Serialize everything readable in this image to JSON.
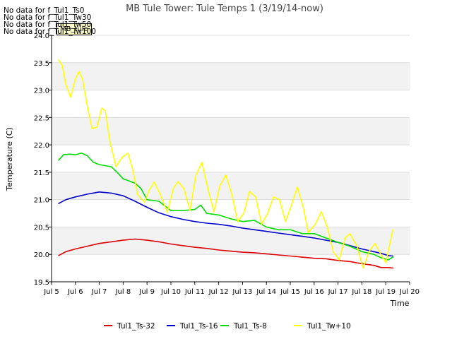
{
  "chart_data": {
    "type": "line",
    "title": "MB Tule Tower: Tule Temps 1 (3/19/14-now)",
    "xlabel": "Time",
    "ylabel": "Temperature (C)",
    "xlim": [
      5,
      20
    ],
    "ylim": [
      19.5,
      24.0
    ],
    "x_ticks": [
      5,
      6,
      7,
      8,
      9,
      10,
      11,
      12,
      13,
      14,
      15,
      16,
      17,
      18,
      19,
      20
    ],
    "x_tick_labels": [
      "Jul 5",
      "Jul 6",
      "Jul 7",
      "Jul 8",
      "Jul 9",
      "Jul 10",
      "Jul 11",
      "Jul 12",
      "Jul 13",
      "Jul 14",
      "Jul 15",
      "Jul 16",
      "Jul 17",
      "Jul 18",
      "Jul 19",
      "Jul 20"
    ],
    "y_ticks": [
      19.5,
      20.0,
      20.5,
      21.0,
      21.5,
      22.0,
      22.5,
      23.0,
      23.5,
      24.0
    ],
    "y_tick_labels": [
      "19.5",
      "20.0",
      "20.5",
      "21.0",
      "21.5",
      "22.0",
      "22.5",
      "23.0",
      "23.5",
      "24.0"
    ],
    "grid": true,
    "legend_position": "bottom",
    "series": [
      {
        "name": "Tul1_Ts-32",
        "color": "#dd0000",
        "x": [
          5.3,
          5.6,
          6.0,
          6.5,
          7.0,
          7.5,
          8.0,
          8.5,
          9.0,
          9.5,
          10.0,
          10.5,
          11.0,
          11.5,
          12.0,
          12.5,
          13.0,
          13.5,
          14.0,
          14.5,
          15.0,
          15.5,
          16.0,
          16.5,
          17.0,
          17.5,
          18.0,
          18.5,
          18.8,
          19.1,
          19.3
        ],
        "y": [
          19.98,
          20.05,
          20.1,
          20.15,
          20.2,
          20.23,
          20.26,
          20.28,
          20.26,
          20.23,
          20.19,
          20.16,
          20.13,
          20.11,
          20.08,
          20.06,
          20.04,
          20.03,
          20.01,
          19.99,
          19.97,
          19.95,
          19.93,
          19.92,
          19.89,
          19.87,
          19.83,
          19.8,
          19.76,
          19.76,
          19.75
        ]
      },
      {
        "name": "Tul1_Ts-16",
        "color": "#0000cc",
        "x": [
          5.3,
          5.6,
          6.0,
          6.5,
          7.0,
          7.5,
          8.0,
          8.5,
          9.0,
          9.5,
          10.0,
          10.5,
          11.0,
          11.5,
          12.0,
          12.5,
          13.0,
          13.5,
          14.0,
          14.5,
          15.0,
          15.5,
          16.0,
          16.5,
          17.0,
          17.5,
          18.0,
          18.5,
          18.8,
          19.1,
          19.3
        ],
        "y": [
          20.93,
          21.0,
          21.05,
          21.1,
          21.14,
          21.12,
          21.07,
          20.97,
          20.86,
          20.76,
          20.69,
          20.64,
          20.6,
          20.57,
          20.55,
          20.52,
          20.48,
          20.45,
          20.42,
          20.39,
          20.36,
          20.33,
          20.3,
          20.26,
          20.22,
          20.16,
          20.1,
          20.05,
          20.02,
          19.98,
          19.97
        ]
      },
      {
        "name": "Tul1_Ts-8",
        "color": "#00dd00",
        "x": [
          5.3,
          5.5,
          5.75,
          6.0,
          6.25,
          6.5,
          6.75,
          7.0,
          7.25,
          7.5,
          7.75,
          8.0,
          8.25,
          8.5,
          8.75,
          9.0,
          9.5,
          10.0,
          10.5,
          11.0,
          11.25,
          11.5,
          12.0,
          12.5,
          13.0,
          13.5,
          14.0,
          14.5,
          15.0,
          15.5,
          16.0,
          16.5,
          17.0,
          17.5,
          18.0,
          18.5,
          18.8,
          19.1,
          19.3
        ],
        "y": [
          21.72,
          21.82,
          21.83,
          21.82,
          21.85,
          21.8,
          21.68,
          21.64,
          21.62,
          21.6,
          21.5,
          21.38,
          21.34,
          21.3,
          21.2,
          21.0,
          20.97,
          20.8,
          20.8,
          20.82,
          20.9,
          20.75,
          20.72,
          20.65,
          20.6,
          20.62,
          20.5,
          20.45,
          20.45,
          20.38,
          20.38,
          20.3,
          20.22,
          20.15,
          20.05,
          20.0,
          19.94,
          19.9,
          19.95
        ]
      },
      {
        "name": "Tul1_Tw+10",
        "color": "#ffff00",
        "x": [
          5.3,
          5.45,
          5.6,
          5.8,
          6.0,
          6.15,
          6.3,
          6.5,
          6.7,
          6.9,
          7.1,
          7.25,
          7.45,
          7.7,
          7.95,
          8.2,
          8.4,
          8.6,
          8.9,
          9.1,
          9.3,
          9.55,
          9.85,
          10.1,
          10.3,
          10.55,
          10.8,
          11.05,
          11.3,
          11.55,
          11.8,
          12.05,
          12.3,
          12.55,
          12.8,
          13.05,
          13.3,
          13.55,
          13.8,
          14.05,
          14.3,
          14.55,
          14.8,
          15.05,
          15.3,
          15.55,
          15.75,
          16.05,
          16.3,
          16.55,
          16.8,
          17.05,
          17.3,
          17.5,
          17.8,
          18.05,
          18.3,
          18.55,
          18.8,
          19.0,
          19.3
        ],
        "y": [
          23.55,
          23.45,
          23.1,
          22.87,
          23.2,
          23.34,
          23.2,
          22.7,
          22.3,
          22.32,
          22.67,
          22.62,
          22.05,
          21.6,
          21.77,
          21.85,
          21.55,
          21.1,
          20.95,
          21.18,
          21.32,
          21.1,
          20.77,
          21.2,
          21.33,
          21.2,
          20.8,
          21.45,
          21.68,
          21.2,
          20.78,
          21.25,
          21.45,
          21.1,
          20.6,
          20.75,
          21.15,
          21.05,
          20.55,
          20.75,
          21.05,
          21.0,
          20.6,
          20.9,
          21.23,
          20.85,
          20.4,
          20.55,
          20.78,
          20.5,
          20.05,
          19.9,
          20.3,
          20.38,
          20.15,
          19.75,
          20.05,
          20.2,
          20.0,
          19.85,
          20.45
        ]
      }
    ]
  },
  "no_data_messages": [
    "No data for f_Tul1_Ts0",
    "No data for f_Tul1_Tw30",
    "No data for f_Tul1_Tw50",
    "No data for f_Tul1_Tw100"
  ],
  "tooltip_label": "MB_tule"
}
